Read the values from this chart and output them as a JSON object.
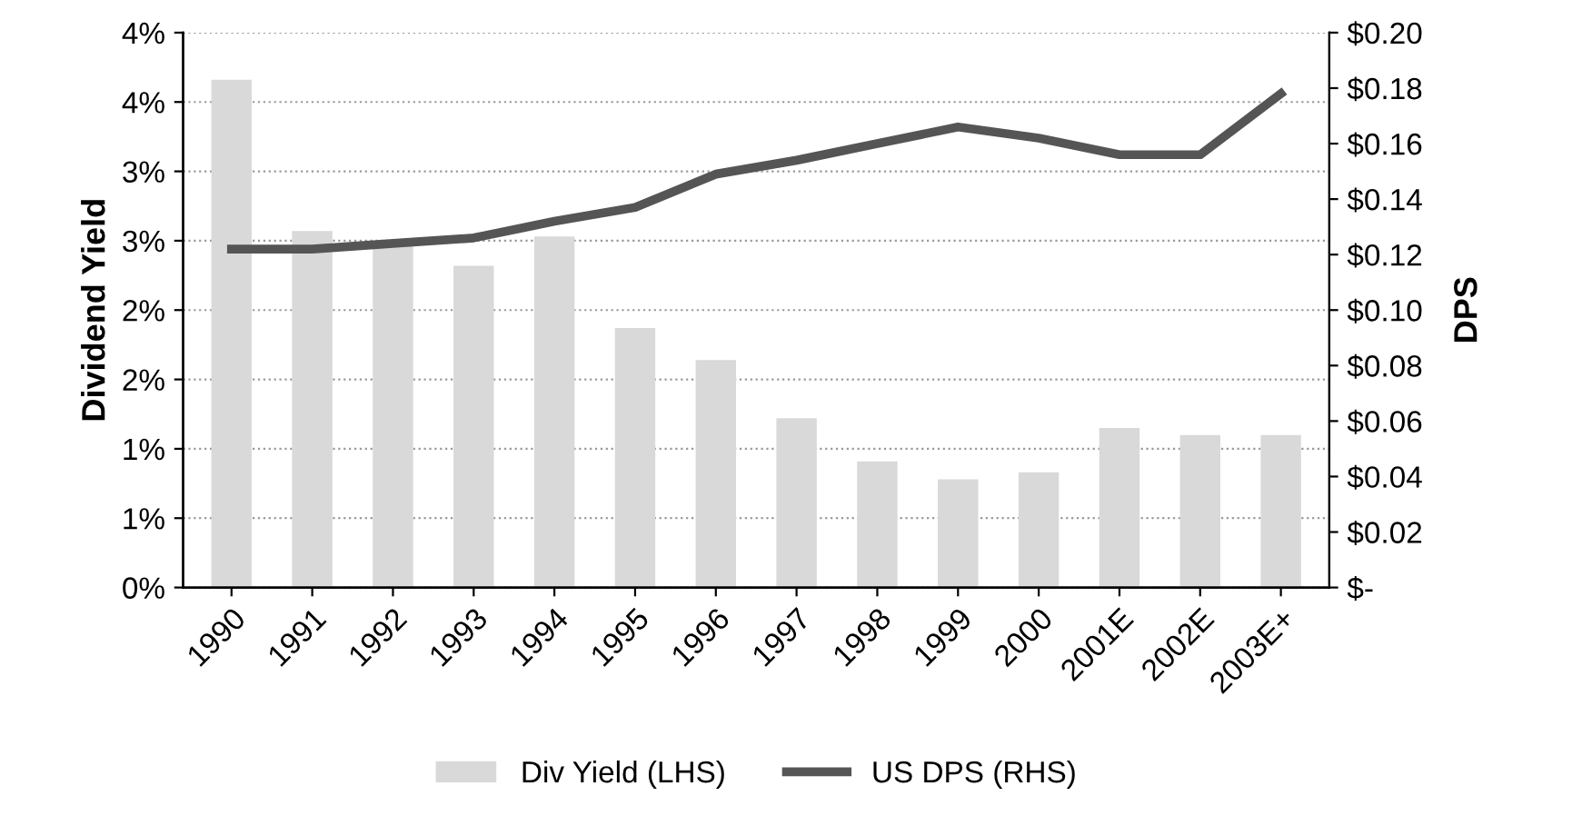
{
  "chart_data": {
    "type": "bar",
    "ylabel": "Dividend Yield",
    "y2label": "DPS",
    "categories": [
      "1990",
      "1991",
      "1992",
      "1993",
      "1994",
      "1995",
      "1996",
      "1997",
      "1998",
      "1999",
      "2000",
      "2001E",
      "2002E",
      "2003E+"
    ],
    "series": [
      {
        "name": "Div Yield (LHS)",
        "color": "#d9d9d9",
        "values": [
          3.66,
          2.57,
          2.48,
          2.32,
          2.53,
          1.87,
          1.64,
          1.22,
          0.91,
          0.78,
          0.83,
          1.15,
          1.1,
          1.1
        ]
      },
      {
        "name": "US DPS (RHS)",
        "type": "line",
        "axis": "y2",
        "color": "#555555",
        "values": [
          0.122,
          0.122,
          0.124,
          0.126,
          0.132,
          0.137,
          0.149,
          0.154,
          0.16,
          0.166,
          0.162,
          0.156,
          0.156,
          0.178
        ]
      }
    ],
    "ylim": [
      0,
      4
    ],
    "yticks": [
      {
        "value": 0,
        "label": "0%"
      },
      {
        "value": 0.5,
        "label": "1%"
      },
      {
        "value": 1,
        "label": "1%"
      },
      {
        "value": 1.5,
        "label": "2%"
      },
      {
        "value": 2,
        "label": "2%"
      },
      {
        "value": 2.5,
        "label": "3%"
      },
      {
        "value": 3,
        "label": "3%"
      },
      {
        "value": 3.5,
        "label": "4%"
      },
      {
        "value": 4,
        "label": "4%"
      }
    ],
    "y2lim": [
      0,
      0.2
    ],
    "y2ticks": [
      {
        "value": 0,
        "label": "$-"
      },
      {
        "value": 0.02,
        "label": "$0.02"
      },
      {
        "value": 0.04,
        "label": "$0.04"
      },
      {
        "value": 0.06,
        "label": "$0.06"
      },
      {
        "value": 0.08,
        "label": "$0.08"
      },
      {
        "value": 0.1,
        "label": "$0.10"
      },
      {
        "value": 0.12,
        "label": "$0.12"
      },
      {
        "value": 0.14,
        "label": "$0.14"
      },
      {
        "value": 0.16,
        "label": "$0.16"
      },
      {
        "value": 0.18,
        "label": "$0.18"
      },
      {
        "value": 0.2,
        "label": "$0.20"
      }
    ],
    "grid": "y",
    "legend": "bottom",
    "marker": "none",
    "line_style": "solid"
  }
}
